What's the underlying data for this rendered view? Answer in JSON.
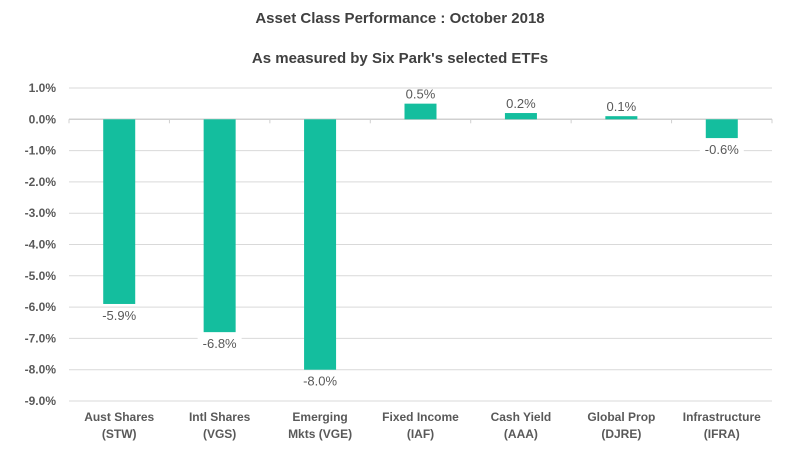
{
  "chart_data": {
    "type": "bar",
    "title": "Asset Class Performance : October 2018",
    "subtitle": "As measured by Six Park's selected ETFs",
    "categories": [
      [
        "Aust Shares",
        "(STW)"
      ],
      [
        "Intl Shares",
        "(VGS)"
      ],
      [
        "Emerging",
        "Mkts (VGE)"
      ],
      [
        "Fixed Income",
        "(IAF)"
      ],
      [
        "Cash Yield",
        "(AAA)"
      ],
      [
        "Global Prop",
        "(DJRE)"
      ],
      [
        "Infrastructure",
        "(IFRA)"
      ]
    ],
    "values": [
      -5.9,
      -6.8,
      -8.0,
      0.5,
      0.2,
      0.1,
      -0.6
    ],
    "data_labels": [
      "-5.9%",
      "-6.8%",
      "-8.0%",
      "0.5%",
      "0.2%",
      "0.1%",
      "-0.6%"
    ],
    "yticks": [
      "1.0%",
      "0.0%",
      "-1.0%",
      "-2.0%",
      "-3.0%",
      "-4.0%",
      "-5.0%",
      "-6.0%",
      "-7.0%",
      "-8.0%",
      "-9.0%"
    ],
    "ylim": [
      -9,
      1
    ],
    "grid": true,
    "bar_color": "#14BE9E"
  }
}
